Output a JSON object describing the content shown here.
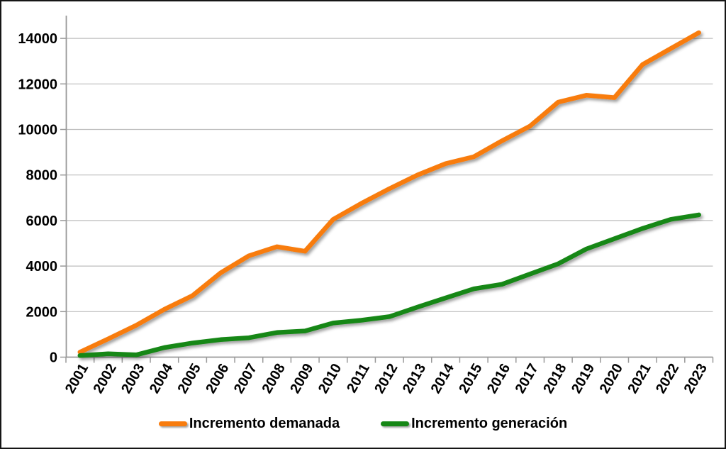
{
  "chart_data": {
    "type": "line",
    "title": "",
    "categories": [
      "2001",
      "2002",
      "2003",
      "2004",
      "2005",
      "2006",
      "2007",
      "2008",
      "2009",
      "2010",
      "2011",
      "2012",
      "2013",
      "2014",
      "2015",
      "2016",
      "2017",
      "2018",
      "2019",
      "2020",
      "2021",
      "2022",
      "2023"
    ],
    "series": [
      {
        "name": "Incremento demanada",
        "color": "#F87C0D",
        "values": [
          220,
          800,
          1400,
          2100,
          2700,
          3700,
          4450,
          4850,
          4650,
          6050,
          6750,
          7400,
          8000,
          8500,
          8800,
          9500,
          10150,
          11200,
          11500,
          11400,
          12850,
          13550,
          14250
        ]
      },
      {
        "name": "Incremento generación",
        "color": "#168716",
        "values": [
          70,
          150,
          100,
          420,
          620,
          770,
          850,
          1080,
          1150,
          1500,
          1620,
          1780,
          2200,
          2600,
          3000,
          3200,
          3650,
          4100,
          4750,
          5200,
          5650,
          6050,
          6250
        ]
      }
    ],
    "xlabel": "",
    "ylabel": "",
    "ylim": [
      0,
      15000
    ],
    "yticks": [
      0,
      2000,
      4000,
      6000,
      8000,
      10000,
      12000,
      14000
    ],
    "grid": true,
    "grid_color": "#BDBDBD",
    "axis_color": "#999999",
    "text_color": "#000000",
    "legend_position": "bottom"
  }
}
